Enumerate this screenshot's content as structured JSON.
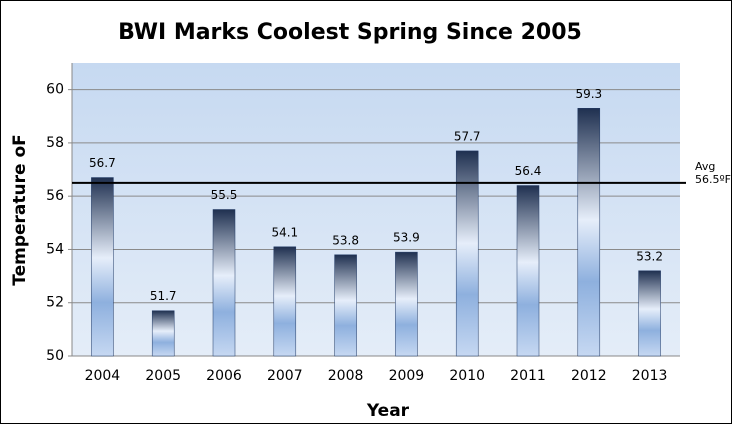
{
  "chart_data": {
    "type": "bar",
    "title": "BWI Marks Coolest Spring Since 2005",
    "x_label": "Year",
    "y_label": "Temperature oF",
    "categories": [
      "2004",
      "2005",
      "2006",
      "2007",
      "2008",
      "2009",
      "2010",
      "2011",
      "2012",
      "2013"
    ],
    "values": [
      56.7,
      51.7,
      55.5,
      54.1,
      53.8,
      53.9,
      57.7,
      56.4,
      59.3,
      53.2
    ],
    "color": "#1f3864",
    "ylim": [
      50,
      61
    ],
    "yticks": [
      50,
      52,
      54,
      56,
      58,
      60
    ],
    "grid": true,
    "reference_line": {
      "value": 56.5,
      "label": [
        "Avg",
        "56.5ºF"
      ],
      "color": "#000000"
    }
  }
}
